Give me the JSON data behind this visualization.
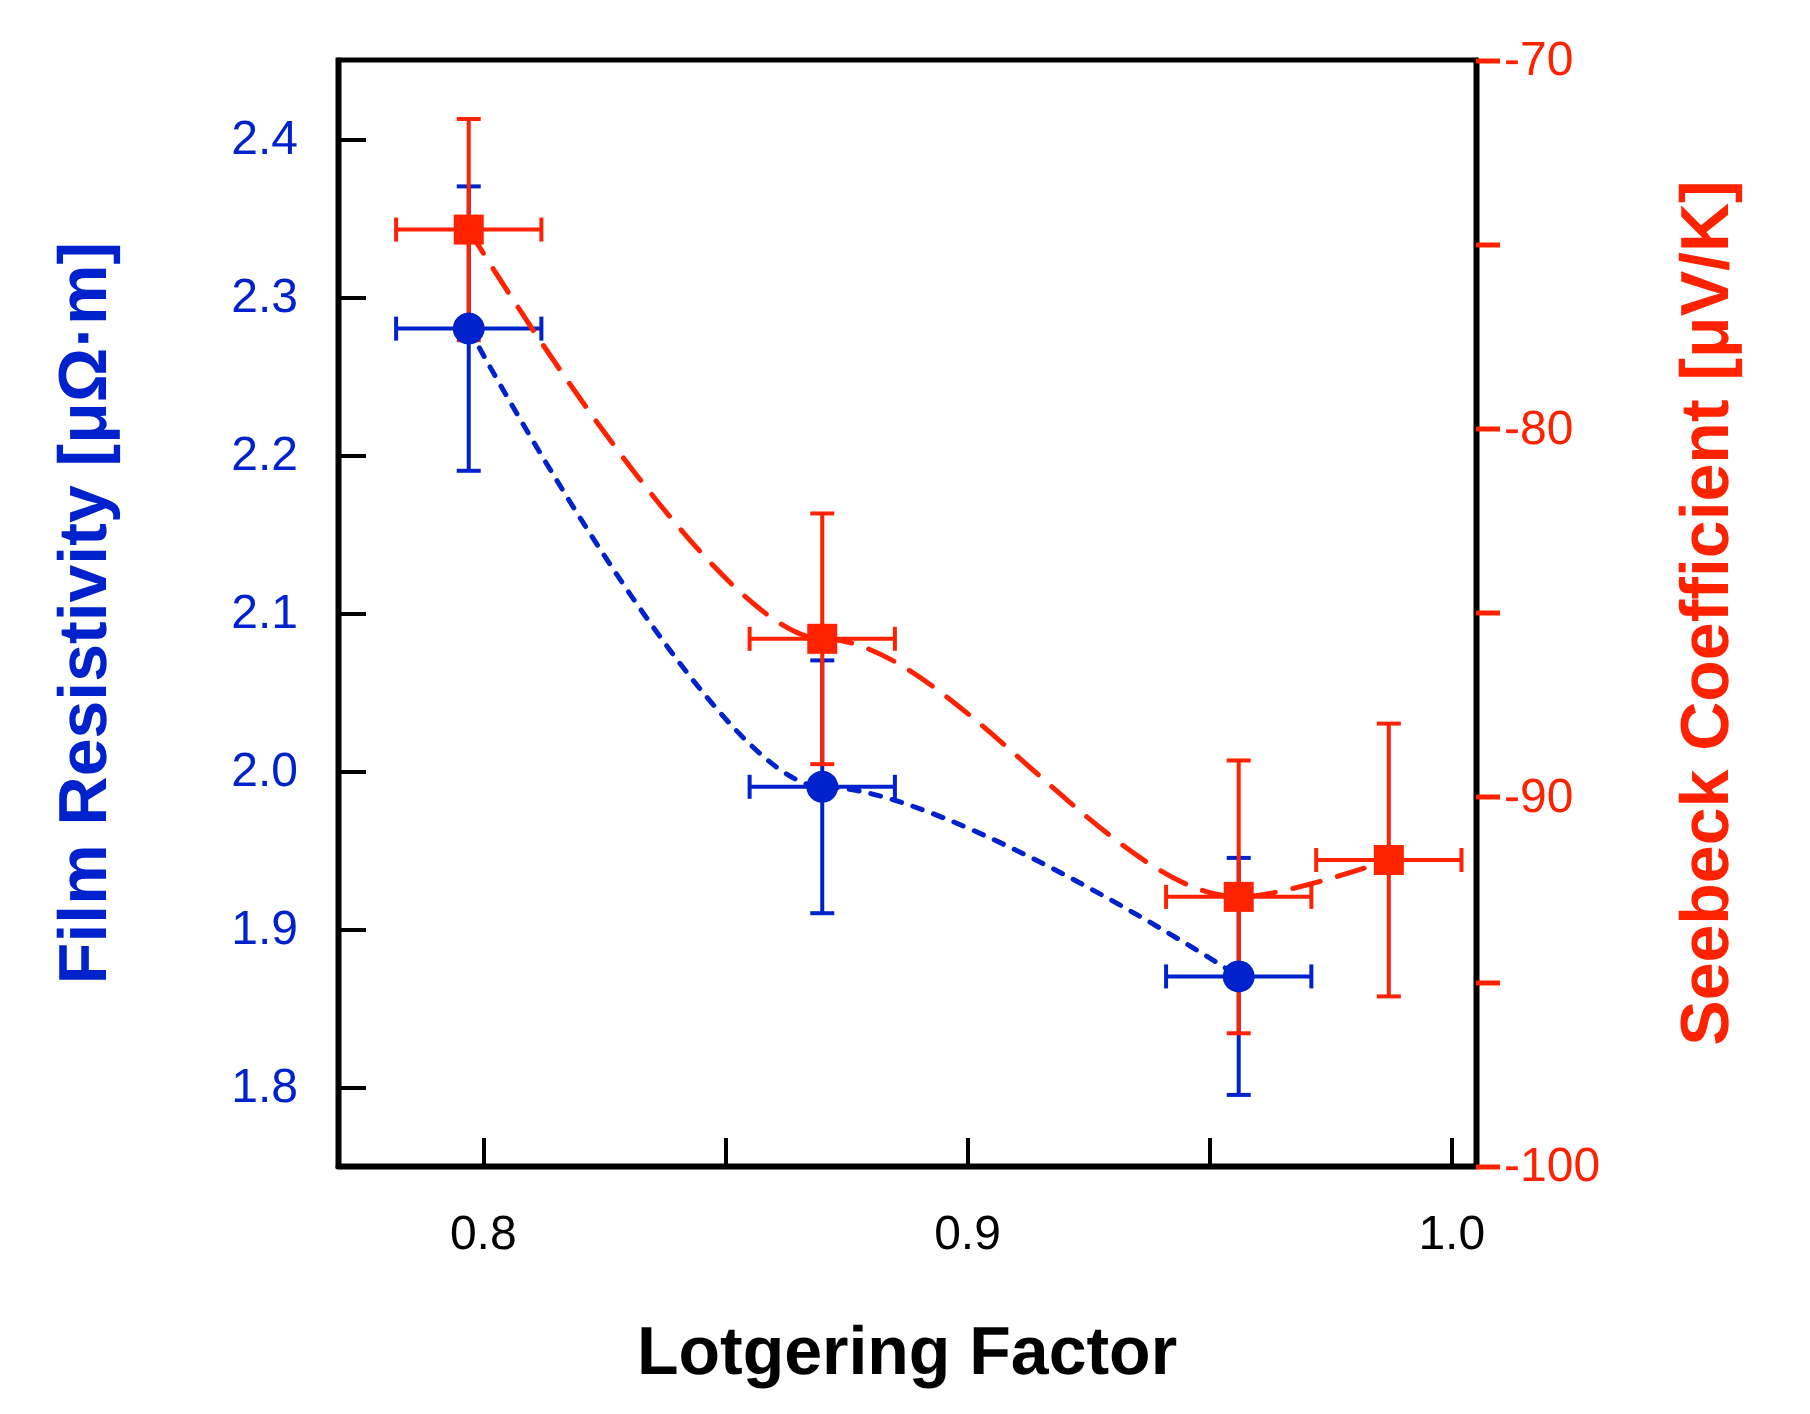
{
  "chart_data": {
    "type": "line",
    "xlabel": "Lotgering Factor",
    "ylabel": "Film Resistivity [μΩ·m]",
    "y2label": "Seebeck Coefficient [μV/K]",
    "xlim": [
      0.77,
      1.005
    ],
    "xticks": [
      {
        "value": 0.8,
        "label": "0.8"
      },
      {
        "value": 0.85,
        "label": null
      },
      {
        "value": 0.9,
        "label": "0.9"
      },
      {
        "value": 0.95,
        "label": null
      },
      {
        "value": 1.0,
        "label": "1.0"
      }
    ],
    "ylim": [
      1.75,
      2.45
    ],
    "yticks": [
      1.8,
      1.9,
      {
        "value": 2.0,
        "label": "2.0"
      },
      2.1,
      2.2,
      2.3,
      2.4
    ],
    "y2lim": [
      -100,
      -70
    ],
    "y2ticks": [
      -100,
      {
        "value": -95,
        "label": null
      },
      -90,
      {
        "value": -85,
        "label": null
      },
      -80,
      {
        "value": -75,
        "label": null
      },
      -70
    ],
    "grid": false,
    "series": [
      {
        "color": "#0022cc",
        "marker": "circle",
        "line_style": "dotted",
        "x": [
          0.797,
          0.87,
          0.956
        ],
        "values": [
          2.28,
          1.99,
          1.87
        ],
        "errors": [
          [
            2.19,
            2.37
          ],
          [
            1.91,
            2.07
          ],
          [
            1.795,
            1.945
          ]
        ],
        "xerrors": [
          0.015,
          0.015,
          0.015
        ]
      },
      {
        "color": "#ff2200",
        "marker": "square",
        "line_style": "dashed",
        "axis": "y2",
        "x": [
          0.797,
          0.87,
          0.956,
          0.987
        ],
        "values": [
          -74.6,
          -85.7,
          -92.7,
          -91.7
        ],
        "errors": [
          3,
          3.4,
          3.7,
          3.7
        ],
        "xerrors": [
          0.015,
          0.015,
          0.015,
          0.015
        ]
      }
    ]
  }
}
